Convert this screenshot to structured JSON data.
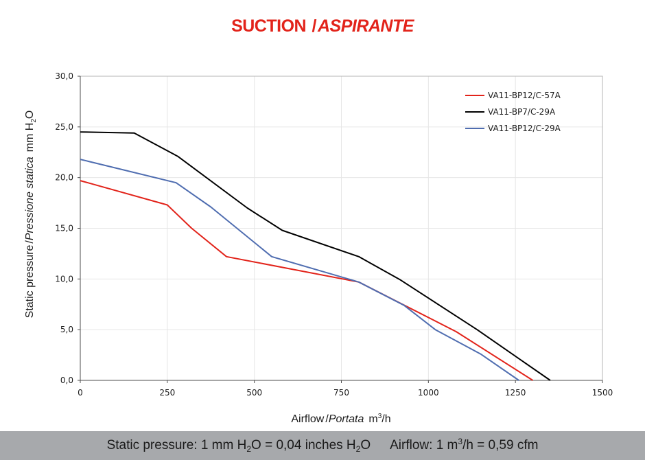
{
  "chart_data": {
    "type": "line",
    "title": {
      "main": "SUCTION",
      "separator": "/",
      "alt": "ASPIRANTE"
    },
    "xlabel": {
      "main": "Airflow",
      "separator": "/",
      "alt": "Portata",
      "unit": "m",
      "unit_sup": "3",
      "unit_tail": "/h"
    },
    "ylabel": {
      "main": "Static pressure",
      "separator": "/",
      "alt": "Pressione statica",
      "unit": "mm  H",
      "unit_sub": "2",
      "unit_tail": "O"
    },
    "xlim": [
      0,
      1500
    ],
    "ylim": [
      0,
      30
    ],
    "x_ticks": [
      0,
      250,
      500,
      750,
      1000,
      1250,
      1500
    ],
    "x_tick_labels": [
      "0",
      "250",
      "500",
      "750",
      "1000",
      "1250",
      "1500"
    ],
    "y_ticks": [
      0,
      5,
      10,
      15,
      20,
      25,
      30
    ],
    "y_tick_labels": [
      "0,0",
      "5,0",
      "10,0",
      "15,0",
      "20,0",
      "25,0",
      "30,0"
    ],
    "grid": true,
    "legend_position": "top-right",
    "series": [
      {
        "name": "VA11-BP12/C-57A",
        "color": "#e2231a",
        "points": [
          [
            0,
            19.7
          ],
          [
            250,
            17.3
          ],
          [
            320,
            15.0
          ],
          [
            420,
            12.2
          ],
          [
            800,
            9.7
          ],
          [
            1080,
            4.8
          ],
          [
            1300,
            0.0
          ]
        ]
      },
      {
        "name": "VA11-BP7/C-29A",
        "color": "#000000",
        "points": [
          [
            0,
            24.5
          ],
          [
            155,
            24.4
          ],
          [
            280,
            22.1
          ],
          [
            480,
            17.0
          ],
          [
            580,
            14.8
          ],
          [
            800,
            12.2
          ],
          [
            920,
            9.9
          ],
          [
            1140,
            5.0
          ],
          [
            1350,
            0.0
          ]
        ]
      },
      {
        "name": "VA11-BP12/C-29A",
        "color": "#4f6db0",
        "points": [
          [
            0,
            21.8
          ],
          [
            275,
            19.5
          ],
          [
            375,
            17.1
          ],
          [
            550,
            12.2
          ],
          [
            800,
            9.7
          ],
          [
            930,
            7.4
          ],
          [
            1020,
            5.0
          ],
          [
            1150,
            2.6
          ],
          [
            1260,
            0.0
          ]
        ]
      }
    ]
  },
  "footer": {
    "pressure_text": "Static pressure: 1 mm H",
    "pressure_sub": "2",
    "pressure_mid": "O = 0,04 inches H",
    "pressure_sub2": "2",
    "pressure_tail": "O",
    "airflow_text": "Airflow: 1 m",
    "airflow_sup": "3",
    "airflow_tail": "/h = 0,59 cfm"
  }
}
